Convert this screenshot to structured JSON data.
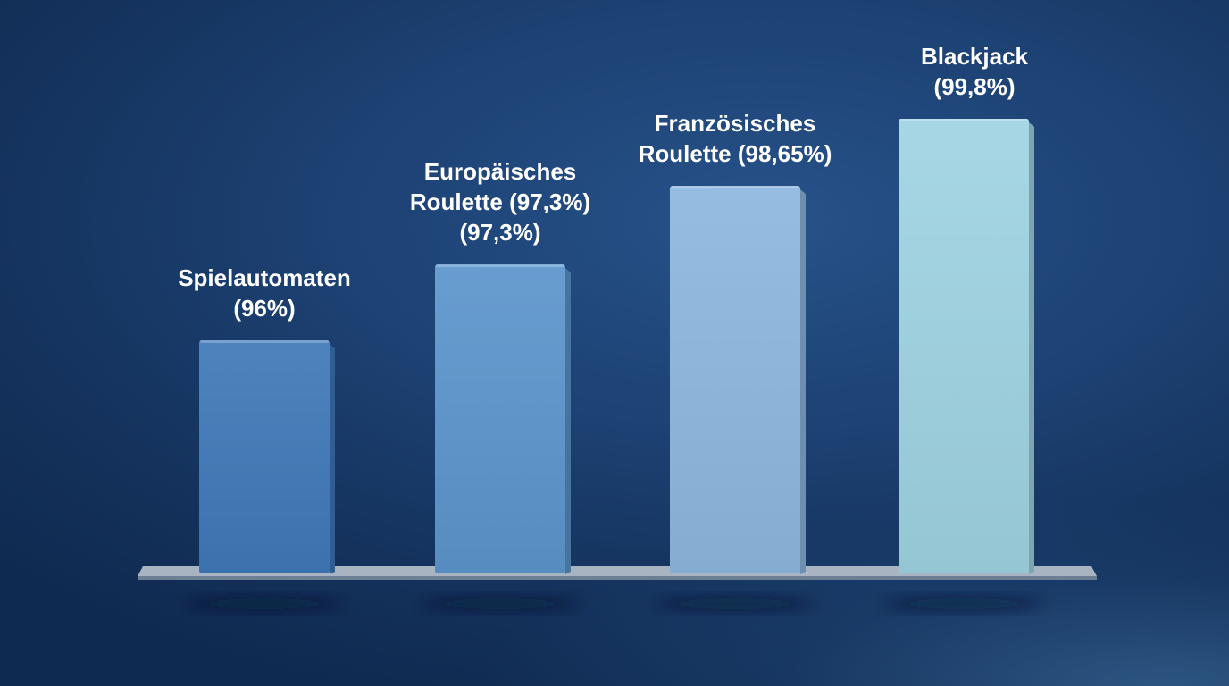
{
  "chart_data": {
    "type": "bar",
    "categories": [
      "Spielautomaten",
      "Europäisches Roulette (97,3%)",
      "Französisches Roulette",
      "Blackjack"
    ],
    "values": [
      96,
      97.3,
      98.65,
      99.8
    ],
    "labels": [
      [
        "Spielautomaten",
        "(96%)"
      ],
      [
        "Europäisches",
        "Roulette (97,3%)",
        "(97,3%)"
      ],
      [
        "Französisches",
        "Roulette (98,65%)"
      ],
      [
        "Blackjack",
        "(99,8%)"
      ]
    ],
    "title": "",
    "xlabel": "",
    "ylabel": "",
    "ylim": [
      92,
      100
    ],
    "grid": false,
    "legend": "none",
    "colors": [
      "#3f78b8",
      "#5b95cc",
      "#8db7de",
      "#9fd3e2"
    ]
  }
}
